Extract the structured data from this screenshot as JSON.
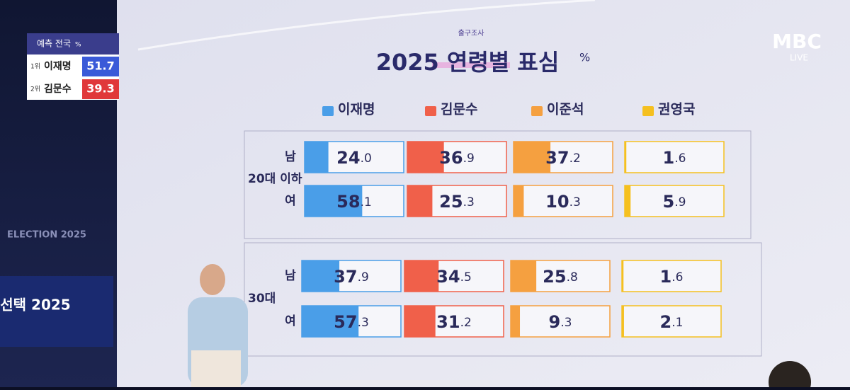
{
  "chart_data": {
    "type": "bar",
    "title": "2025 연령별 표심",
    "unit": "%",
    "source": "출구조사",
    "groups": [
      "20대 이하",
      "30대"
    ],
    "categories": [
      "남",
      "여",
      "남",
      "여"
    ],
    "xlim": [
      0,
      100
    ],
    "series": [
      {
        "name": "이재명",
        "color": "#4a9ee8",
        "values": [
          24.0,
          58.1,
          37.9,
          57.3
        ],
        "value_labels": [
          "24.0",
          "58.1",
          "37.9",
          "57.3"
        ]
      },
      {
        "name": "김문수",
        "color": "#f0604a",
        "values": [
          36.9,
          25.3,
          34.5,
          31.2
        ],
        "value_labels": [
          "36.9",
          "25.3",
          "34.5",
          "31.2"
        ]
      },
      {
        "name": "이준석",
        "color": "#f5a040",
        "values": [
          37.2,
          10.3,
          25.8,
          9.3
        ],
        "value_labels": [
          "37.2",
          "10.3",
          "25.8",
          "9.3"
        ]
      },
      {
        "name": "권영국",
        "color": "#f5c020",
        "values": [
          1.6,
          5.9,
          1.6,
          2.1
        ],
        "value_labels": [
          "1.6",
          "5.9",
          "1.6",
          "2.1"
        ]
      }
    ]
  },
  "broadcast": {
    "logo": "MBC",
    "live": "LIVE",
    "backdrop": "ELECTION 2025",
    "stage": "선택 2025",
    "prediction": {
      "title": "예측 전국",
      "unit": "%",
      "rows": [
        {
          "rank": "1위",
          "name": "이재명",
          "value": "51.7"
        },
        {
          "rank": "2위",
          "name": "김문수",
          "value": "39.3"
        }
      ]
    }
  }
}
